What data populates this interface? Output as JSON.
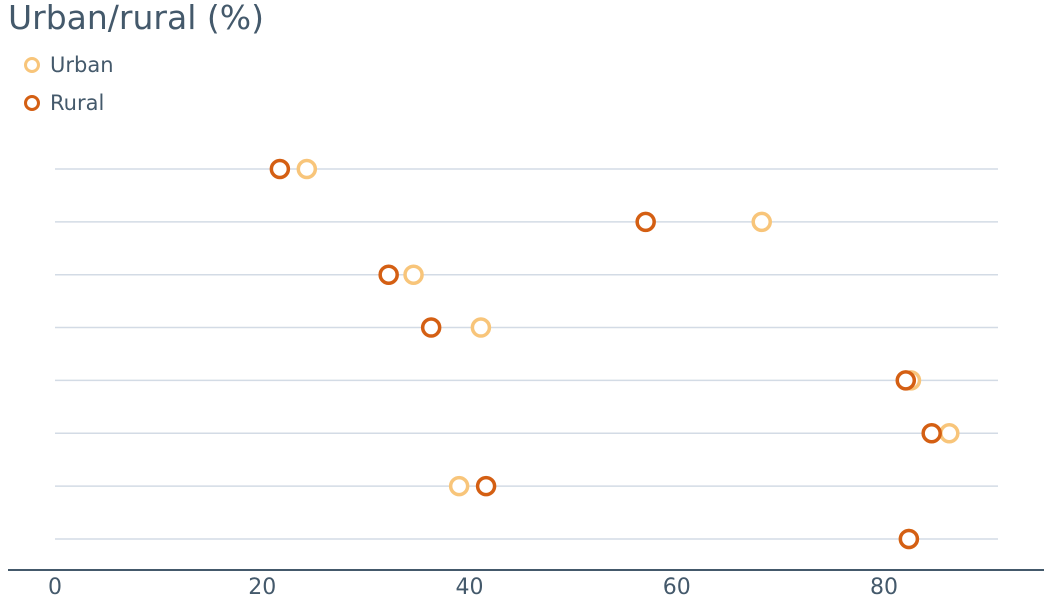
{
  "chart_data": {
    "type": "scatter",
    "title": "Urban/rural (%)",
    "xlabel": "",
    "ylabel": "",
    "xlim": [
      0,
      91
    ],
    "xticks": [
      0,
      20,
      40,
      60,
      80
    ],
    "grid": true,
    "legend_position": "top-left",
    "rows": 8,
    "series": [
      {
        "name": "Urban",
        "color": "#f8c57a",
        "values": [
          24.3,
          68.2,
          34.6,
          41.1,
          82.6,
          86.3,
          39.0,
          82.4
        ]
      },
      {
        "name": "Rural",
        "color": "#d45f13",
        "values": [
          21.7,
          57.0,
          32.2,
          36.3,
          82.1,
          84.6,
          41.6,
          82.4
        ]
      }
    ]
  }
}
